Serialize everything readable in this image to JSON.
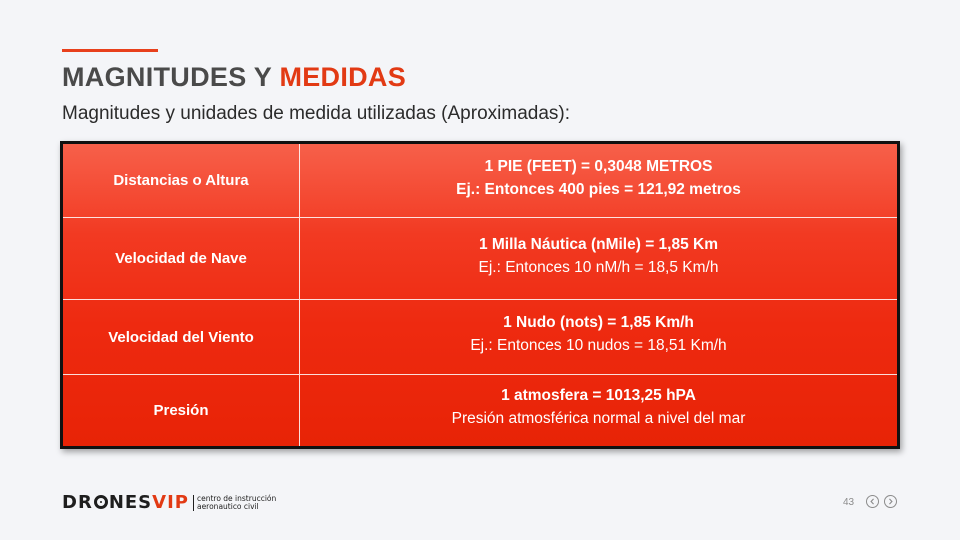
{
  "slide": {
    "title_part1": "MAGNITUDES Y ",
    "title_highlight": "MEDIDAS",
    "subtitle": "Magnitudes y unidades de medida utilizadas (Aproximadas):",
    "page_number": "43"
  },
  "table": {
    "rows": [
      {
        "label": "Distancias o Altura",
        "line1": "1 PIE (FEET) = 0,3048 METROS",
        "line2": "Ej.: Entonces 400 pies = 121,92 metros",
        "line2_bold": true
      },
      {
        "label": "Velocidad de Nave",
        "line1": "1 Milla Náutica (nMile) = 1,85 Km",
        "line2": "Ej.: Entonces 10 nM/h = 18,5 Km/h",
        "line2_bold": false
      },
      {
        "label": "Velocidad del Viento",
        "line1": "1 Nudo (nots) = 1,85 Km/h",
        "line2": "Ej.: Entonces 10 nudos = 18,51 Km/h",
        "line2_bold": false
      },
      {
        "label": "Presión",
        "line1": "1 atmosfera = 1013,25 hPA",
        "line2": "Presión atmosférica normal a nivel del mar",
        "line2_bold": false
      }
    ]
  },
  "logo": {
    "part1": "DR",
    "part2": "NES",
    "part_vip": "VIP",
    "tagline1": "centro de instrucción",
    "tagline2": "aeronautico civil"
  },
  "colors": {
    "accent": "#e23a14",
    "title_gray": "#4a4a4a",
    "table_red": "#ee2a10"
  },
  "icons": {
    "prev": "chevron-left-icon",
    "next": "chevron-right-icon"
  }
}
